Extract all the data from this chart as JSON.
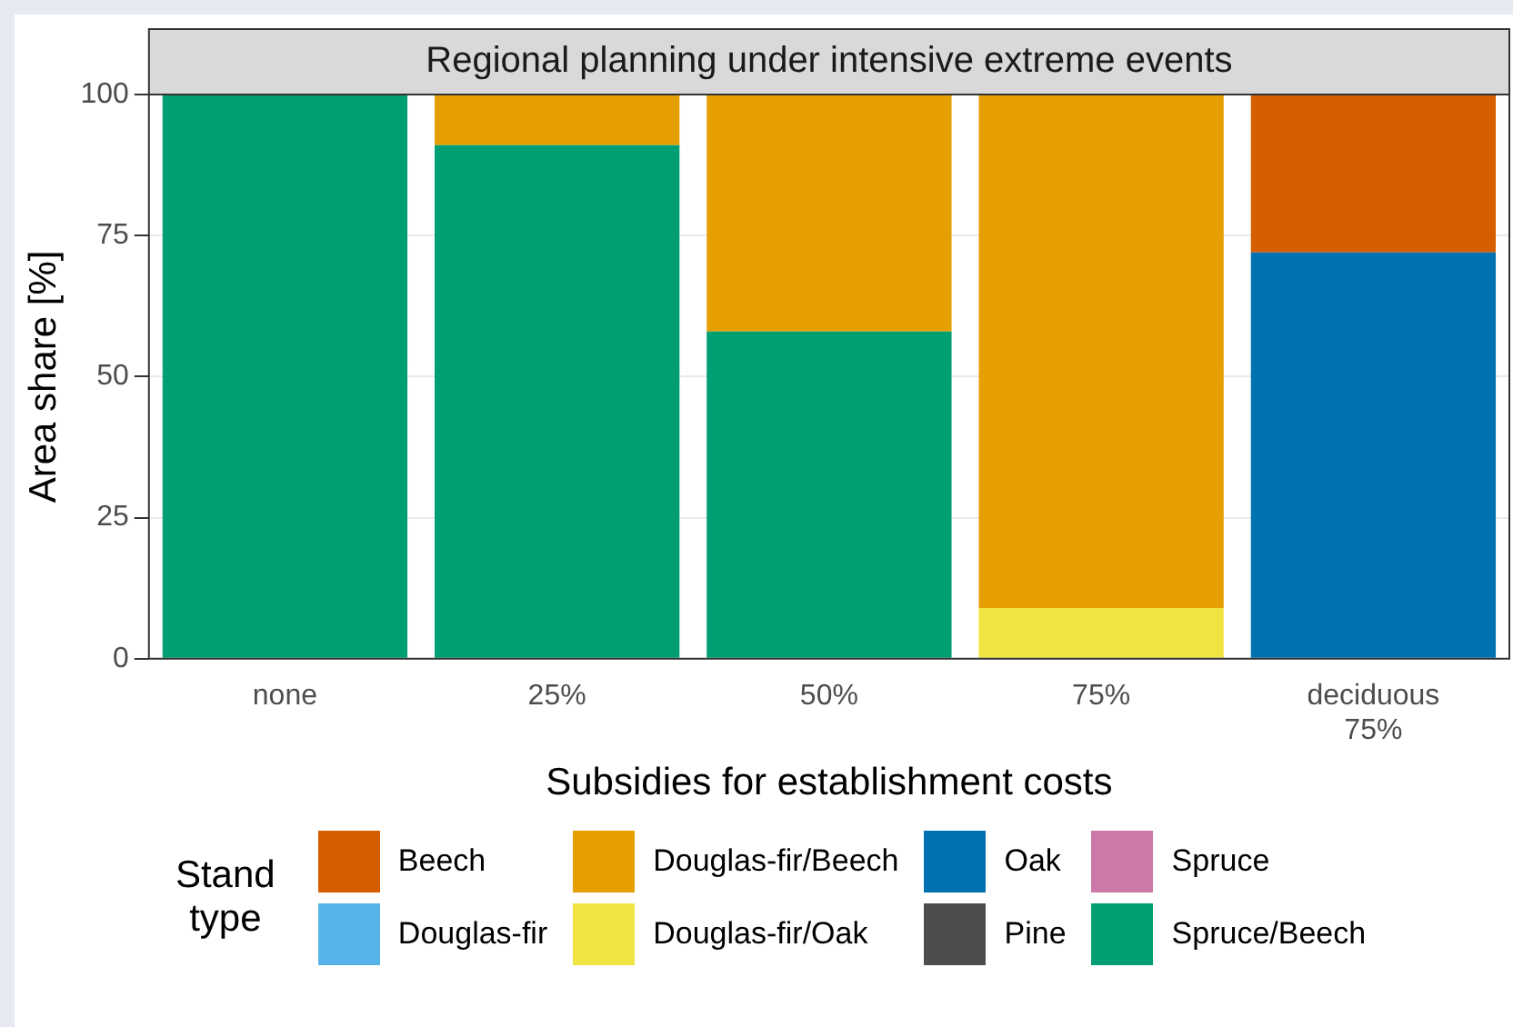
{
  "chart_data": {
    "type": "bar",
    "title": "Regional planning under intensive extreme events",
    "xlabel": "Subsidies for establishment costs",
    "ylabel": "Area share [%]",
    "legend_title": "Stand type",
    "categories": [
      "none",
      "25%",
      "50%",
      "75%",
      "deciduous 75%"
    ],
    "stacked": true,
    "ylim": [
      0,
      100
    ],
    "yticks": [
      0,
      25,
      50,
      75,
      100
    ],
    "grid": "y",
    "legend": "bottom",
    "series": [
      {
        "name": "Spruce/Beech",
        "color": "#009e73",
        "values": [
          100,
          91,
          58,
          0,
          0
        ]
      },
      {
        "name": "Spruce",
        "color": "#cc79a7",
        "values": [
          0,
          0,
          0,
          0,
          0
        ]
      },
      {
        "name": "Pine",
        "color": "#4d4d4d",
        "values": [
          0,
          0,
          0,
          0,
          0
        ]
      },
      {
        "name": "Oak",
        "color": "#0072b2",
        "values": [
          0,
          0,
          0,
          0,
          72
        ]
      },
      {
        "name": "Douglas-fir/Oak",
        "color": "#f0e442",
        "values": [
          0,
          0,
          0,
          9,
          0
        ]
      },
      {
        "name": "Douglas-fir/Beech",
        "color": "#e69f00",
        "values": [
          0,
          9,
          42,
          91,
          0
        ]
      },
      {
        "name": "Douglas-fir",
        "color": "#56b4e9",
        "values": [
          0,
          0,
          0,
          0,
          0
        ]
      },
      {
        "name": "Beech",
        "color": "#d55e00",
        "values": [
          0,
          0,
          0,
          0,
          28
        ]
      }
    ]
  }
}
